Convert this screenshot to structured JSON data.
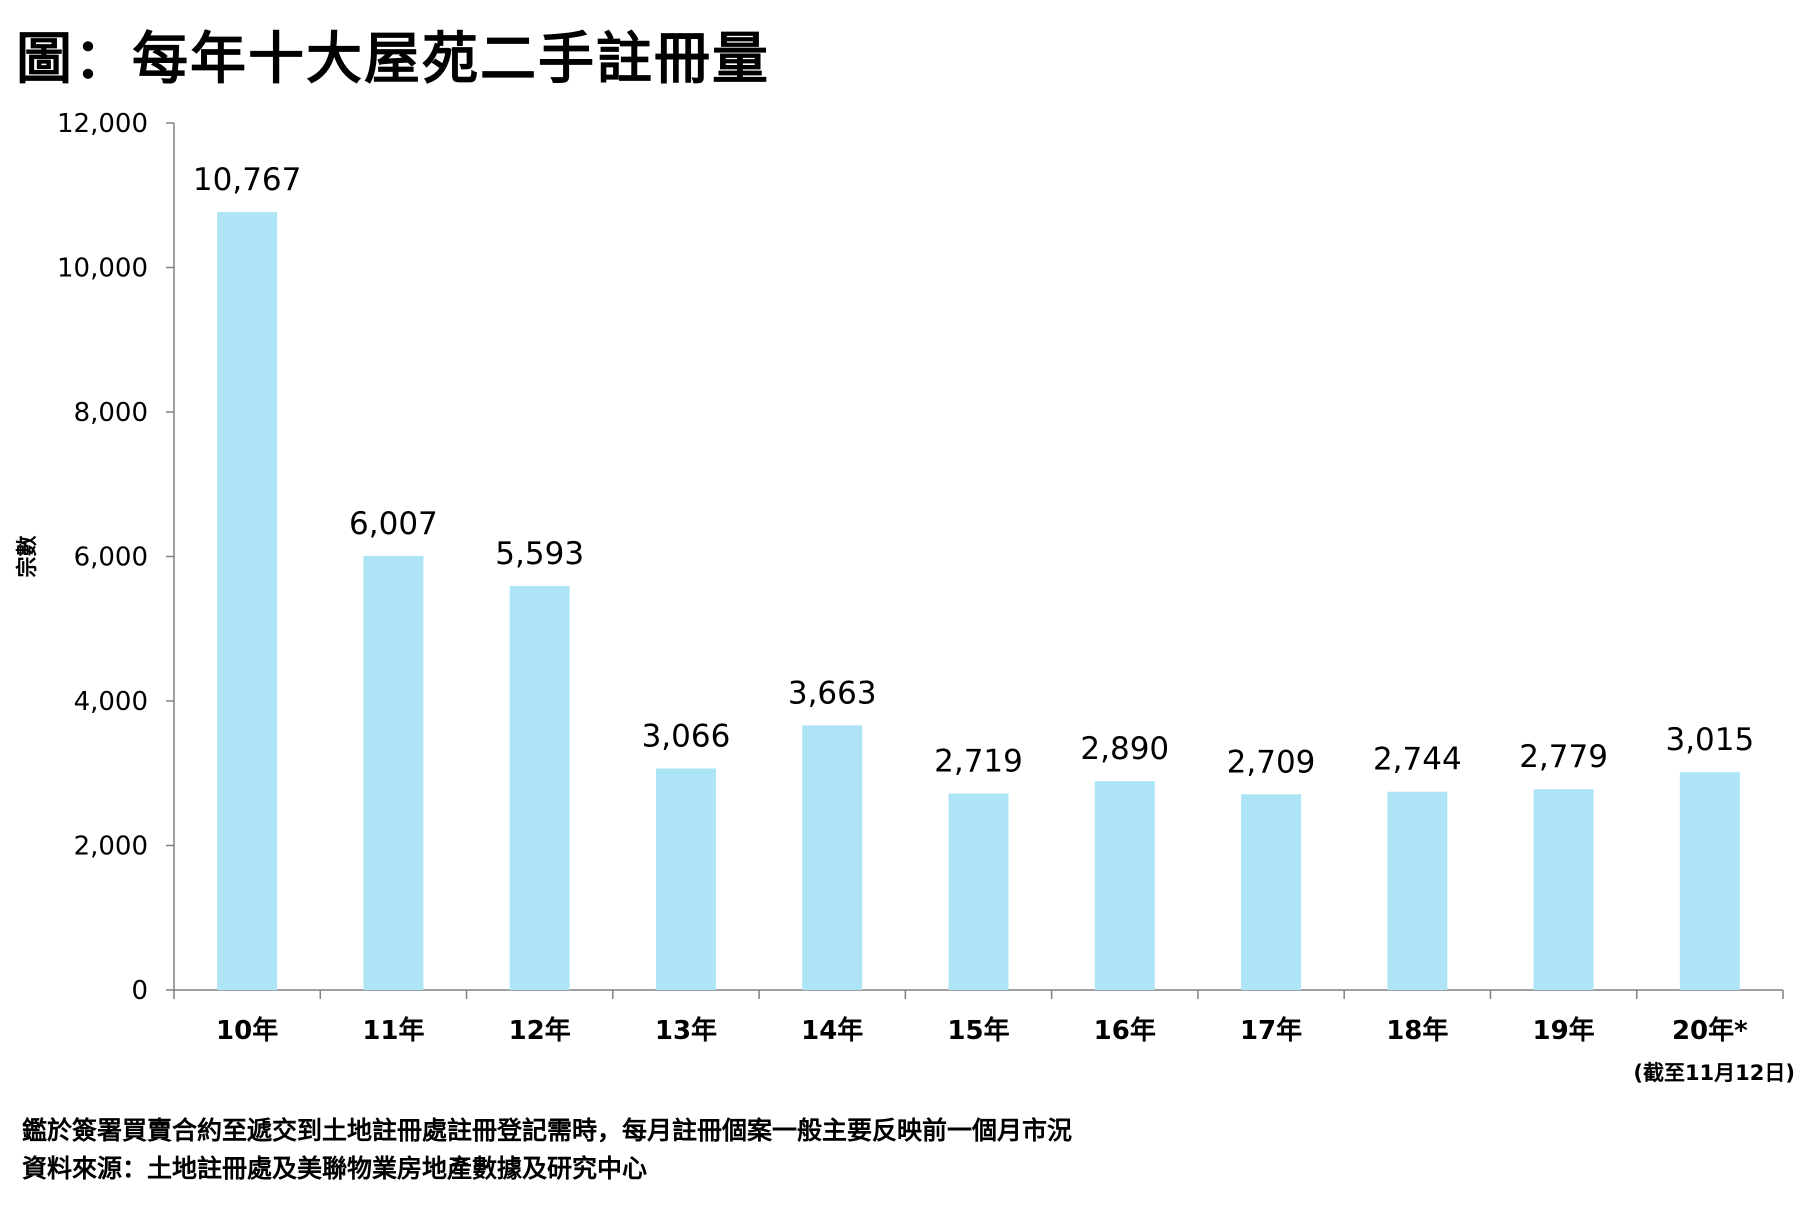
{
  "title": "圖：每年十大屋苑二手註冊量",
  "chart_data": {
    "type": "bar",
    "categories": [
      "10年",
      "11年",
      "12年",
      "13年",
      "14年",
      "15年",
      "16年",
      "17年",
      "18年",
      "19年",
      "20年*"
    ],
    "values": [
      10767,
      6007,
      5593,
      3066,
      3663,
      2719,
      2890,
      2709,
      2744,
      2779,
      3015
    ],
    "data_labels": [
      "10,767",
      "6,007",
      "5,593",
      "3,066",
      "3,663",
      "2,719",
      "2,890",
      "2,709",
      "2,744",
      "2,779",
      "3,015"
    ],
    "ylabel": "宗數",
    "ylim": [
      0,
      12000
    ],
    "yticks": [
      0,
      2000,
      4000,
      6000,
      8000,
      10000,
      12000
    ],
    "ytick_labels": [
      "0",
      "2,000",
      "4,000",
      "6,000",
      "8,000",
      "10,000",
      "12,000"
    ],
    "x_note": "(截至11月12日)",
    "bar_color": "#ade5f6",
    "grid": false,
    "legend": "none"
  },
  "footnotes": {
    "line1": "鑑於簽署買賣合約至遞交到土地註冊處註冊登記需時，每月註冊個案一般主要反映前一個月市況",
    "line2": "資料來源：土地註冊處及美聯物業房地產數據及研究中心"
  }
}
